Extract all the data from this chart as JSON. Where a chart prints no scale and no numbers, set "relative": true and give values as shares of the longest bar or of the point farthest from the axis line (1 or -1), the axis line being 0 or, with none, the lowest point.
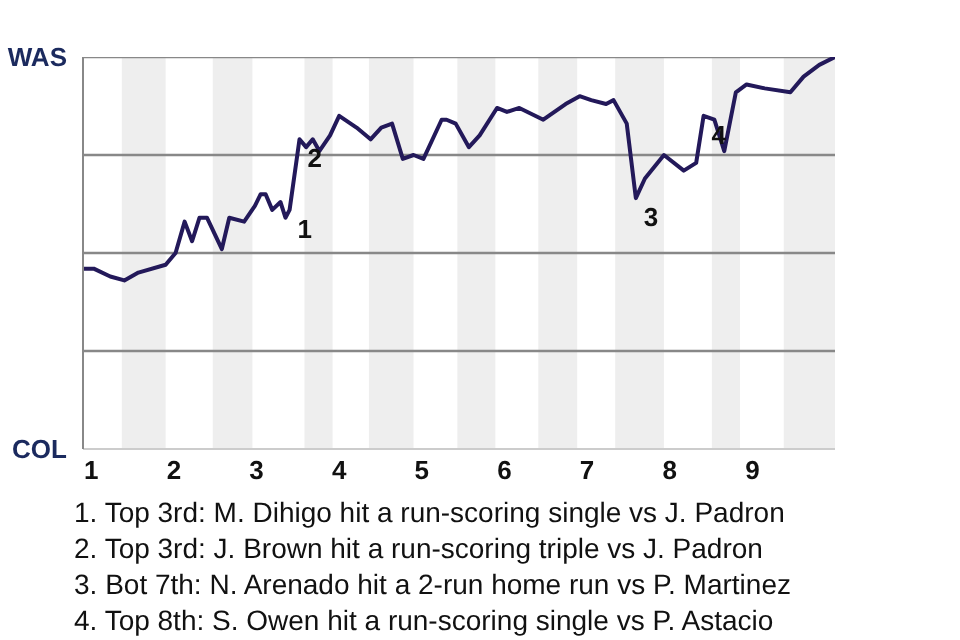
{
  "chart_data": {
    "type": "line",
    "relative": true,
    "x": [
      0.9,
      1.03,
      1.23,
      1.4,
      1.57,
      1.9,
      2.02,
      2.13,
      2.22,
      2.31,
      2.4,
      2.58,
      2.67,
      2.85,
      2.98,
      3.05,
      3.11,
      3.19,
      3.29,
      3.35,
      3.4,
      3.52,
      3.6,
      3.68,
      3.76,
      3.89,
      4.0,
      4.21,
      4.38,
      4.51,
      4.64,
      4.77,
      4.9,
      5.02,
      5.24,
      5.3,
      5.41,
      5.57,
      5.7,
      5.91,
      6.03,
      6.18,
      6.47,
      6.74,
      6.91,
      7.05,
      7.23,
      7.32,
      7.48,
      7.59,
      7.7,
      7.93,
      8.17,
      8.32,
      8.41,
      8.54,
      8.66,
      8.8,
      8.93,
      9.15,
      9.46,
      9.62,
      9.81,
      10.0
    ],
    "series": [
      {
        "color": "#23195a",
        "values": [
          0.46,
          0.46,
          0.44,
          0.43,
          0.45,
          0.47,
          0.5,
          0.58,
          0.53,
          0.59,
          0.59,
          0.51,
          0.59,
          0.58,
          0.62,
          0.65,
          0.65,
          0.61,
          0.63,
          0.59,
          0.61,
          0.79,
          0.77,
          0.79,
          0.76,
          0.8,
          0.85,
          0.82,
          0.79,
          0.82,
          0.83,
          0.74,
          0.75,
          0.74,
          0.84,
          0.84,
          0.83,
          0.77,
          0.8,
          0.87,
          0.86,
          0.87,
          0.84,
          0.88,
          0.9,
          0.89,
          0.88,
          0.89,
          0.83,
          0.64,
          0.69,
          0.75,
          0.71,
          0.73,
          0.85,
          0.84,
          0.76,
          0.91,
          0.93,
          0.92,
          0.91,
          0.95,
          0.98,
          1.0
        ]
      }
    ],
    "xlim": [
      0.9,
      10
    ],
    "xticks": [
      1,
      2,
      3,
      4,
      5,
      6,
      7,
      8,
      9
    ],
    "marker": "none",
    "line_style": "solid",
    "ref_lines": [
      {
        "axis": "y",
        "value": 0.25,
        "color": "#888888"
      },
      {
        "axis": "y",
        "value": 0.5,
        "color": "#888888"
      },
      {
        "axis": "y",
        "value": 0.75,
        "color": "#888888"
      },
      {
        "axis": "y",
        "value": 1,
        "color": "#888888"
      }
    ],
    "bands": [
      {
        "axis": "x",
        "from": 1.37,
        "to": 1.9,
        "color": "#eeeeee"
      },
      {
        "axis": "x",
        "from": 2.47,
        "to": 2.95,
        "color": "#eeeeee"
      },
      {
        "axis": "x",
        "from": 3.58,
        "to": 3.92,
        "color": "#eeeeee"
      },
      {
        "axis": "x",
        "from": 4.36,
        "to": 4.9,
        "color": "#eeeeee"
      },
      {
        "axis": "x",
        "from": 5.43,
        "to": 5.89,
        "color": "#eeeeee"
      },
      {
        "axis": "x",
        "from": 6.41,
        "to": 6.88,
        "color": "#eeeeee"
      },
      {
        "axis": "x",
        "from": 7.34,
        "to": 7.93,
        "color": "#eeeeee"
      },
      {
        "axis": "x",
        "from": 8.51,
        "to": 8.85,
        "color": "#eeeeee"
      },
      {
        "axis": "x",
        "from": 9.38,
        "to": 10,
        "color": "#eeeeee"
      }
    ],
    "annotations": [
      "WAS",
      "COL",
      {
        "text": "1",
        "x": 3.4,
        "y": 0.61
      },
      {
        "text": "2",
        "x": 3.52,
        "y": 0.79
      },
      {
        "text": "3",
        "x": 7.59,
        "y": 0.64
      },
      {
        "text": "4",
        "x": 8.41,
        "y": 0.85
      },
      "1. Top 3rd: M. Dihigo hit a run-scoring single vs J. Padron",
      "2. Top 3rd: J. Brown hit a run-scoring triple vs J. Padron",
      "3. Bot 7th: N. Arenado hit a 2-run home run vs P. Martinez",
      "4. Top 8th: S. Owen hit a run-scoring single vs P. Astacio"
    ]
  }
}
